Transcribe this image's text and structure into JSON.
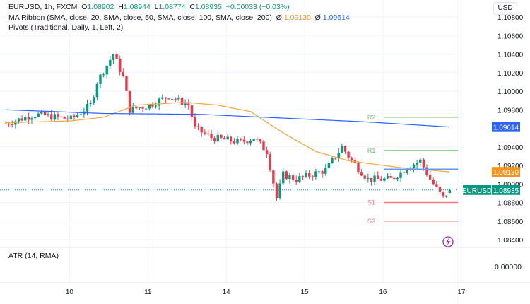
{
  "legend": {
    "symbol": "EURUSD, 1h, FXCM",
    "o_label": "O",
    "o": "1.08902",
    "h_label": "H",
    "h": "1.08944",
    "l_label": "L",
    "l": "1.08774",
    "c_label": "C",
    "c": "1.08935",
    "change": "+0.00033 (+0.03%)",
    "ma": "MA Ribbon (SMA, close, 20, SMA, close, 50, SMA, close, 100, SMA, close, 200)",
    "ma_sym": "Ø",
    "ma_v1": "1.09130",
    "ma_v2": "1.09614",
    "pivots": "Pivots (Traditional, Daily, 1, Left, 2)"
  },
  "currency_button": "USD",
  "atr": {
    "label": "ATR (14, RMA)",
    "value": "0.00000"
  },
  "colors": {
    "up": "#089981",
    "down": "#f23645",
    "ma_fast": "#f7a53b",
    "ma_slow": "#2962ff",
    "r": "#6cc46c",
    "s": "#f77c80",
    "p": "#5b9cf6"
  },
  "chart_data": {
    "type": "candlestick",
    "symbol": "EURUSD",
    "interval": "1h",
    "ylim": [
      1.083,
      1.1085
    ],
    "y_ticks": [
      "1.10800",
      "1.10600",
      "1.10400",
      "1.10200",
      "1.10000",
      "1.09800",
      "1.09400",
      "1.09200",
      "1.09000",
      "1.08800",
      "1.08600",
      "1.08400"
    ],
    "x_ticks": [
      "10",
      "11",
      "14",
      "15",
      "16",
      "17"
    ],
    "x_tick_hours": [
      20,
      44,
      68,
      92,
      116,
      140
    ],
    "close_keypoints": [
      [
        0,
        1.0965
      ],
      [
        9,
        1.0975
      ],
      [
        20,
        1.097
      ],
      [
        26,
        1.0985
      ],
      [
        28,
        1.101
      ],
      [
        33,
        1.104
      ],
      [
        36,
        1.1015
      ],
      [
        38,
        1.098
      ],
      [
        44,
        1.0985
      ],
      [
        50,
        1.0995
      ],
      [
        56,
        1.0985
      ],
      [
        58,
        1.096
      ],
      [
        63,
        1.095
      ],
      [
        72,
        1.0945
      ],
      [
        76,
        1.095
      ],
      [
        80,
        1.0935
      ],
      [
        83,
        1.0885
      ],
      [
        85,
        1.091
      ],
      [
        89,
        1.0905
      ],
      [
        98,
        1.0915
      ],
      [
        103,
        1.094
      ],
      [
        106,
        1.0925
      ],
      [
        111,
        1.0905
      ],
      [
        118,
        1.0905
      ],
      [
        124,
        1.092
      ],
      [
        127,
        1.0925
      ],
      [
        130,
        1.0905
      ],
      [
        134,
        1.0885
      ],
      [
        136,
        1.08935
      ]
    ],
    "ma_fast": [
      [
        0,
        1.0966
      ],
      [
        20,
        1.0968
      ],
      [
        30,
        1.0972
      ],
      [
        40,
        1.0985
      ],
      [
        55,
        1.0988
      ],
      [
        65,
        1.0985
      ],
      [
        75,
        1.0978
      ],
      [
        85,
        1.0955
      ],
      [
        95,
        1.0935
      ],
      [
        105,
        1.0925
      ],
      [
        120,
        1.0918
      ],
      [
        136,
        1.0913
      ]
    ],
    "ma_slow": [
      [
        0,
        1.098
      ],
      [
        30,
        1.0976
      ],
      [
        60,
        1.0975
      ],
      [
        85,
        1.0971
      ],
      [
        110,
        1.0967
      ],
      [
        136,
        1.09614
      ]
    ],
    "last_price": {
      "label": "EURUSD",
      "value": "1.08935"
    },
    "price_labels": [
      {
        "value": "1.09614",
        "color": "#2962ff"
      },
      {
        "value": "1.09130",
        "color": "#f7931a"
      }
    ],
    "pivots": [
      {
        "label": "R2",
        "value": 1.0972,
        "color": "#6cc46c"
      },
      {
        "label": "R1",
        "value": 1.0936,
        "color": "#6cc46c"
      },
      {
        "label": "",
        "value": 1.0916,
        "color": "#5b9cf6"
      },
      {
        "label": "S1",
        "value": 1.088,
        "color": "#f77c80"
      },
      {
        "label": "S2",
        "value": 1.086,
        "color": "#f77c80"
      }
    ],
    "pivot_start_hour": 116
  }
}
